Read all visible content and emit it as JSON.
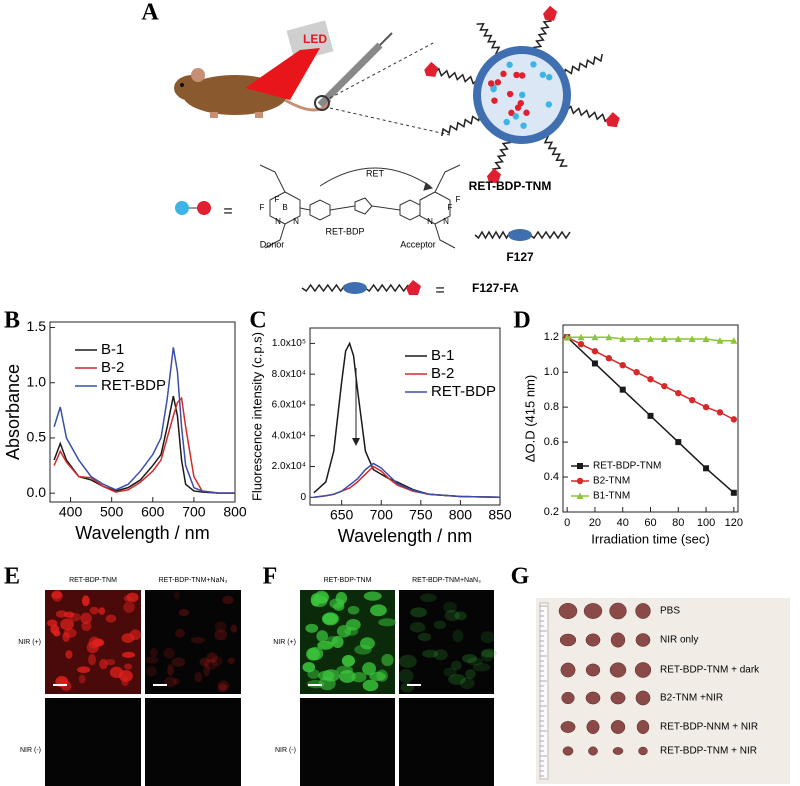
{
  "panel_labels": [
    "A",
    "B",
    "C",
    "D",
    "E",
    "F",
    "G"
  ],
  "schematic": {
    "led": "LED",
    "ret": "RET",
    "molecule": "RET-BDP",
    "donor": "Donor",
    "acceptor": "Acceptor",
    "equals_1": "=",
    "nanoparticle": "RET-BDP-TNM",
    "polymer": "F127",
    "equals_2": "=",
    "polymer_fa": "F127-FA",
    "atoms": [
      "F",
      "B",
      "N",
      "N",
      "F",
      "F",
      "N",
      "N",
      "F"
    ]
  },
  "chart_data": [
    {
      "type": "line",
      "ylabel": "Absorbance",
      "xlabel": "Wavelength / nm",
      "x": [
        360,
        375,
        390,
        420,
        450,
        480,
        510,
        540,
        570,
        600,
        620,
        635,
        650,
        660,
        670,
        680,
        700,
        720,
        760,
        800
      ],
      "series": [
        {
          "name": "B-1",
          "color": "#1a1a1a",
          "values": [
            0.3,
            0.45,
            0.3,
            0.15,
            0.12,
            0.06,
            0.02,
            0.05,
            0.12,
            0.25,
            0.35,
            0.6,
            0.88,
            0.7,
            0.3,
            0.08,
            0.02,
            0.01,
            0.0,
            0.0
          ]
        },
        {
          "name": "B-2",
          "color": "#d42a2a",
          "values": [
            0.25,
            0.38,
            0.28,
            0.15,
            0.14,
            0.06,
            0.01,
            0.03,
            0.1,
            0.2,
            0.3,
            0.5,
            0.7,
            0.82,
            0.86,
            0.6,
            0.15,
            0.02,
            0.0,
            0.0
          ]
        },
        {
          "name": "RET-BDP",
          "color": "#3a4fa8",
          "values": [
            0.6,
            0.78,
            0.5,
            0.3,
            0.15,
            0.08,
            0.03,
            0.08,
            0.2,
            0.35,
            0.5,
            0.85,
            1.32,
            1.1,
            0.6,
            0.25,
            0.05,
            0.02,
            0.0,
            0.0
          ]
        }
      ],
      "xlim": [
        350,
        800
      ],
      "xticks": [
        400,
        500,
        600,
        700,
        800
      ],
      "ylim": [
        -0.08,
        1.55
      ],
      "yticks": [
        {
          "value": 0,
          "label": "0.0"
        },
        0.5,
        {
          "value": 1,
          "label": "1.0"
        },
        1.5
      ],
      "legend": "upper right"
    },
    {
      "type": "line",
      "ylabel": "Fluorescence intensity (c.p.s)",
      "xlabel": "Wavelength / nm",
      "x": [
        615,
        630,
        640,
        650,
        655,
        660,
        665,
        670,
        680,
        690,
        700,
        710,
        720,
        740,
        760,
        800,
        850
      ],
      "series": [
        {
          "name": "B-1",
          "color": "#1a1a1a",
          "values": [
            3000,
            10000,
            30000,
            75000,
            95000,
            100000,
            92000,
            70000,
            30000,
            18000,
            15000,
            12000,
            10000,
            5000,
            2000,
            500,
            0
          ]
        },
        {
          "name": "B-2",
          "color": "#d42a2a",
          "values": [
            0,
            1000,
            2000,
            4000,
            5000,
            6000,
            8000,
            10000,
            15000,
            20000,
            17000,
            12000,
            8000,
            4000,
            2000,
            500,
            0
          ]
        },
        {
          "name": "RET-BDP",
          "color": "#3a4fa8",
          "values": [
            0,
            1000,
            2000,
            4000,
            6000,
            8000,
            10000,
            12000,
            18000,
            22000,
            19000,
            14000,
            9000,
            4500,
            2000,
            500,
            0
          ]
        }
      ],
      "xlim": [
        610,
        850
      ],
      "xticks": [
        650,
        700,
        750,
        800,
        850
      ],
      "ylim": [
        -5000,
        110000
      ],
      "yticks": [
        0,
        {
          "value": 20000,
          "label": "2.0x10⁴"
        },
        {
          "value": 40000,
          "label": "4.0x10⁴"
        },
        {
          "value": 60000,
          "label": "6.0x10⁴"
        },
        {
          "value": 80000,
          "label": "8.0x10⁴"
        },
        {
          "value": 100000,
          "label": "1.0x10⁵"
        }
      ],
      "legend": "upper right"
    },
    {
      "type": "line",
      "ylabel": "ΔO.D (415 nm)",
      "xlabel": "Irradiation time (sec)",
      "series": [
        {
          "name": "RET-BDP-TNM",
          "color": "#1a1a1a",
          "marker": "square",
          "x": [
            0,
            20,
            40,
            60,
            80,
            100,
            120
          ],
          "values": [
            1.2,
            1.05,
            0.9,
            0.75,
            0.6,
            0.45,
            0.31
          ]
        },
        {
          "name": "B2-TNM",
          "color": "#d42a2a",
          "marker": "circle",
          "x": [
            0,
            10,
            20,
            30,
            40,
            50,
            60,
            70,
            80,
            90,
            100,
            110,
            120
          ],
          "values": [
            1.2,
            1.16,
            1.12,
            1.08,
            1.04,
            1.0,
            0.96,
            0.92,
            0.88,
            0.84,
            0.8,
            0.77,
            0.73
          ]
        },
        {
          "name": "B1-TNM",
          "color": "#8cc43c",
          "marker": "triangle",
          "x": [
            0,
            10,
            20,
            30,
            40,
            50,
            60,
            70,
            80,
            90,
            100,
            110,
            120
          ],
          "values": [
            1.2,
            1.2,
            1.2,
            1.2,
            1.19,
            1.19,
            1.19,
            1.19,
            1.19,
            1.19,
            1.19,
            1.18,
            1.18
          ]
        }
      ],
      "xlim": [
        -3,
        123
      ],
      "xticks": [
        0,
        20,
        40,
        60,
        80,
        100,
        120
      ],
      "ylim": [
        0.2,
        1.27
      ],
      "yticks": [
        0.2,
        0.4,
        0.6,
        0.8,
        {
          "value": 1,
          "label": "1.0"
        },
        1.2
      ],
      "legend": "lower left"
    }
  ],
  "microscopy": [
    {
      "columns": [
        "RET-BDP-TNM",
        "RET-BDP-TNM+NaN₃"
      ],
      "rows": [
        "NIR (+)",
        "NIR (-)"
      ],
      "color": "#e0201c"
    },
    {
      "columns": [
        "RET-BDP-TNM",
        "RET-BDP-TNM+NaN₃"
      ],
      "rows": [
        "NIR (+)",
        "NIR (-)"
      ],
      "color": "#3cc83c"
    }
  ],
  "tumor_groups": [
    "PBS",
    "NIR only",
    "RET-BDP-TNM + dark",
    "B2-TNM +NIR",
    "RET-BDP-NNM + NIR",
    "RET-BDP-TNM + NIR"
  ]
}
